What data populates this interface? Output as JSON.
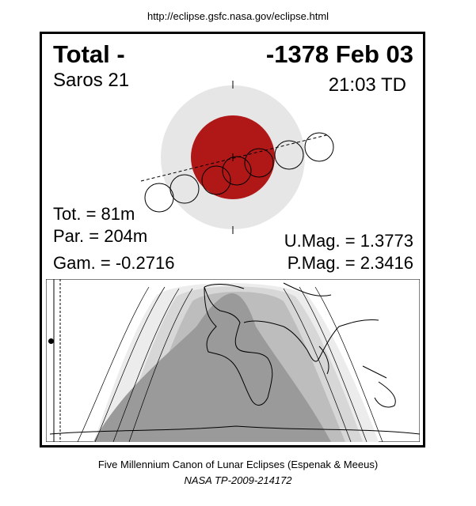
{
  "source_url": "http://eclipse.gsfc.nasa.gov/eclipse.html",
  "eclipse": {
    "type_label": "Total  -",
    "date_label": "-1378 Feb 03",
    "saros_label": "Saros  21",
    "time_label": "21:03 TD"
  },
  "stats": {
    "totality": "Tot. =  81m",
    "partiality": "Par. = 204m",
    "gamma": "Gam. = -0.2716",
    "umbral_magnitude": "U.Mag. = 1.3773",
    "penumbral_magnitude": "P.Mag. = 2.3416"
  },
  "colors": {
    "penumbra": "#e6e6e6",
    "umbra": "#b01818",
    "map_dark": "#9a9a9a",
    "map_mid": "#bdbdbd",
    "map_light": "#d7d7d7",
    "map_lightest": "#ececec"
  },
  "footer": {
    "line1": "Five Millennium Canon of Lunar Eclipses (Espenak & Meeus)",
    "line2": "NASA TP-2009-214172"
  }
}
